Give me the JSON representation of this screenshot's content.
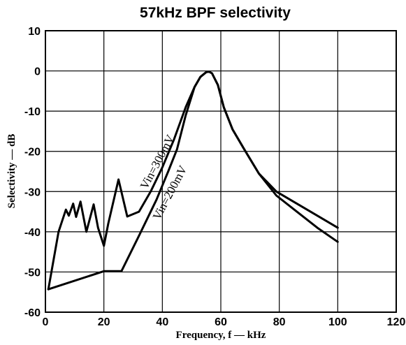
{
  "chart_data": {
    "type": "line",
    "title": "57kHz BPF selectivity",
    "xlabel": "Frequency, f — kHz",
    "ylabel": "Selectivity — dB",
    "xlim": [
      0,
      120
    ],
    "ylim": [
      -60,
      10
    ],
    "x_ticks": [
      0,
      20,
      40,
      60,
      80,
      100,
      120
    ],
    "y_ticks": [
      10,
      0,
      -10,
      -20,
      -30,
      -40,
      -50,
      -60
    ],
    "x_tick_labels": [
      "0",
      "20",
      "40",
      "60",
      "80",
      "100",
      "120"
    ],
    "y_tick_labels": [
      "10",
      "0",
      "-10",
      "-20",
      "-30",
      "-40",
      "-50",
      "-60"
    ],
    "grid": true,
    "series": [
      {
        "name": "Vin=300mV",
        "points": [
          [
            1,
            -54.3
          ],
          [
            4.5,
            -40
          ],
          [
            7,
            -34.5
          ],
          [
            8,
            -36
          ],
          [
            9.5,
            -33
          ],
          [
            10.5,
            -36.3
          ],
          [
            12,
            -32.5
          ],
          [
            14,
            -40
          ],
          [
            16.5,
            -33.2
          ],
          [
            18,
            -39
          ],
          [
            20,
            -43.5
          ],
          [
            21.5,
            -38
          ],
          [
            25,
            -27
          ],
          [
            28,
            -36.2
          ],
          [
            32,
            -35
          ],
          [
            36,
            -30
          ],
          [
            40,
            -24
          ],
          [
            44,
            -17
          ],
          [
            48,
            -9
          ],
          [
            51,
            -4
          ],
          [
            53,
            -1.5
          ],
          [
            55,
            -0.3
          ],
          [
            56,
            -0.2
          ],
          [
            57,
            -0.6
          ],
          [
            59,
            -3.5
          ],
          [
            61,
            -9
          ],
          [
            64,
            -14.5
          ],
          [
            68,
            -19.5
          ],
          [
            73,
            -25.5
          ],
          [
            79,
            -30
          ],
          [
            86,
            -33
          ],
          [
            93,
            -36
          ],
          [
            100,
            -39
          ]
        ]
      },
      {
        "name": "Vin=200mV",
        "points": [
          [
            1,
            -54.3
          ],
          [
            20,
            -49.8
          ],
          [
            26,
            -49.8
          ],
          [
            32,
            -41
          ],
          [
            38,
            -32
          ],
          [
            42,
            -25
          ],
          [
            45,
            -19.5
          ],
          [
            48,
            -11
          ],
          [
            51,
            -4
          ],
          [
            53,
            -1.5
          ],
          [
            55,
            -0.3
          ],
          [
            56,
            -0.2
          ],
          [
            57,
            -0.6
          ],
          [
            59,
            -3.5
          ],
          [
            61,
            -9
          ],
          [
            64,
            -14.5
          ],
          [
            68,
            -19.5
          ],
          [
            73,
            -25.5
          ],
          [
            79,
            -31
          ],
          [
            86,
            -35
          ],
          [
            93,
            -39
          ],
          [
            100,
            -42.5
          ]
        ]
      }
    ],
    "annotations": [
      "Vin=300mV",
      "Vin=200mV"
    ]
  }
}
